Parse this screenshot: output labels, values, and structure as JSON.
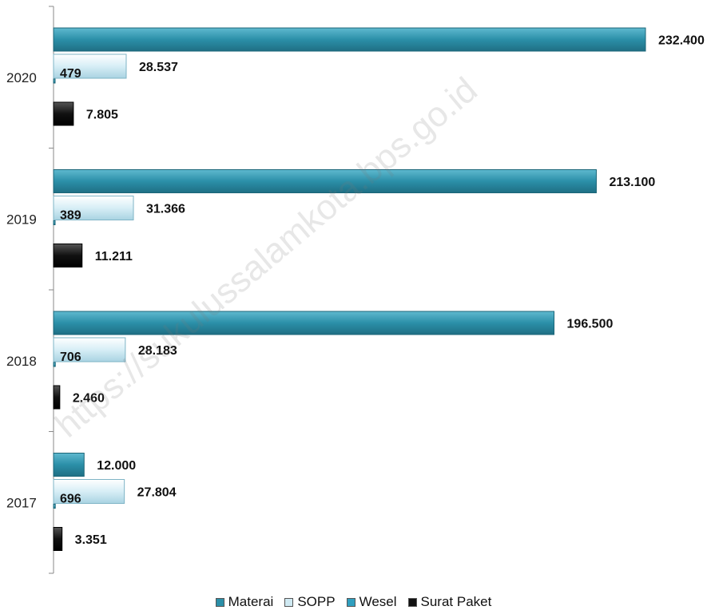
{
  "chart_data": {
    "type": "bar",
    "orientation": "horizontal",
    "categories": [
      "2020",
      "2019",
      "2018",
      "2017"
    ],
    "series": [
      {
        "name": "Materai",
        "values": [
          232400,
          213100,
          196500,
          12000
        ],
        "labels": [
          "232.400",
          "213.100",
          "196.500",
          "12.000"
        ],
        "color": "#2b8fa8"
      },
      {
        "name": "SOPP",
        "values": [
          28537,
          31366,
          28183,
          27804
        ],
        "labels": [
          "28.537",
          "31.366",
          "28.183",
          "27.804"
        ],
        "color": "#cfe9f2"
      },
      {
        "name": "Wesel",
        "values": [
          479,
          389,
          706,
          696
        ],
        "labels": [
          "479",
          "389",
          "706",
          "696"
        ],
        "color": "#2f9fbf"
      },
      {
        "name": "Surat Paket",
        "values": [
          7805,
          11211,
          2460,
          3351
        ],
        "labels": [
          "7.805",
          "11.211",
          "2.460",
          "3.351"
        ],
        "color": "#111111"
      }
    ],
    "legend_position": "bottom",
    "grid": false
  },
  "watermark": "https://sukulussalamkota.bps.go.id"
}
